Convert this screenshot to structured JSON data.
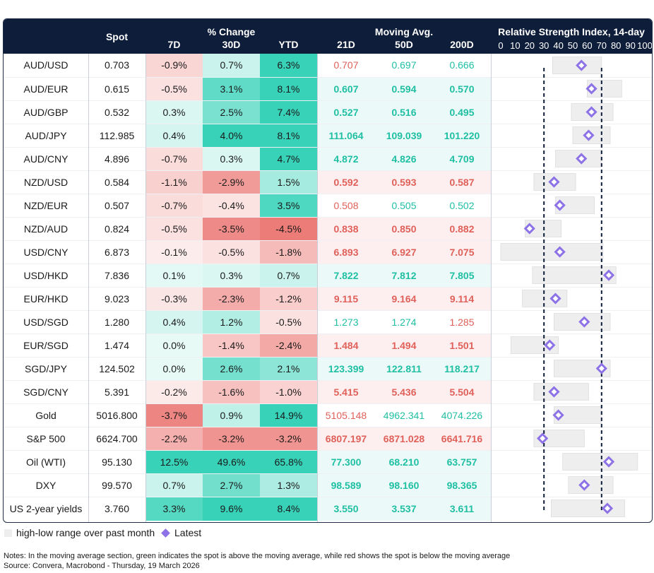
{
  "header": {
    "spot": "Spot",
    "pct_change": "% Change",
    "d7": "7D",
    "d30": "30D",
    "ytd": "YTD",
    "moving_avg": "Moving Avg.",
    "ma21": "21D",
    "ma50": "50D",
    "ma200": "200D",
    "rsi_title": "Relative Strength Index, 14-day",
    "rsi_ticks": [
      "0",
      "10",
      "20",
      "30",
      "40",
      "50",
      "60",
      "70",
      "80",
      "90",
      "100"
    ]
  },
  "colors": {
    "header_bg": "#0e1d3a",
    "green_text": "#1fbfa4",
    "red_text": "#e0605a",
    "marker": "#8c72e6",
    "range_bar": "#eeeeee"
  },
  "chart_data": {
    "type": "table",
    "rsi_xlim": [
      0,
      100
    ],
    "rsi_reference_lines": [
      30,
      70
    ],
    "rows": [
      {
        "name": "AUD/USD",
        "spot": "0.703",
        "d7": "-0.9%",
        "d30": "0.7%",
        "ytd": "6.3%",
        "ma21": "0.707",
        "ma50": "0.697",
        "ma200": "0.666",
        "rsi_low": 36,
        "rsi_high": 70,
        "rsi": 56
      },
      {
        "name": "AUD/EUR",
        "spot": "0.615",
        "d7": "-0.5%",
        "d30": "3.1%",
        "ytd": "8.1%",
        "ma21": "0.607",
        "ma50": "0.594",
        "ma200": "0.570",
        "rsi_low": 60,
        "rsi_high": 84,
        "rsi": 63
      },
      {
        "name": "AUD/GBP",
        "spot": "0.532",
        "d7": "0.3%",
        "d30": "2.5%",
        "ytd": "7.4%",
        "ma21": "0.527",
        "ma50": "0.516",
        "ma200": "0.495",
        "rsi_low": 49,
        "rsi_high": 78,
        "rsi": 63
      },
      {
        "name": "AUD/JPY",
        "spot": "112.985",
        "d7": "0.4%",
        "d30": "4.0%",
        "ytd": "8.1%",
        "ma21": "111.064",
        "ma50": "109.039",
        "ma200": "101.220",
        "rsi_low": 50,
        "rsi_high": 76,
        "rsi": 61
      },
      {
        "name": "AUD/CNY",
        "spot": "4.896",
        "d7": "-0.7%",
        "d30": "0.3%",
        "ytd": "4.7%",
        "ma21": "4.872",
        "ma50": "4.826",
        "ma200": "4.709",
        "rsi_low": 38,
        "rsi_high": 70,
        "rsi": 56
      },
      {
        "name": "NZD/USD",
        "spot": "0.584",
        "d7": "-1.1%",
        "d30": "-2.9%",
        "ytd": "1.5%",
        "ma21": "0.592",
        "ma50": "0.593",
        "ma200": "0.587",
        "rsi_low": 23,
        "rsi_high": 52,
        "rsi": 37
      },
      {
        "name": "NZD/EUR",
        "spot": "0.507",
        "d7": "-0.7%",
        "d30": "-0.4%",
        "ytd": "3.5%",
        "ma21": "0.508",
        "ma50": "0.505",
        "ma200": "0.502",
        "rsi_low": 38,
        "rsi_high": 65,
        "rsi": 41
      },
      {
        "name": "NZD/AUD",
        "spot": "0.824",
        "d7": "-0.5%",
        "d30": "-3.5%",
        "ytd": "-4.5%",
        "ma21": "0.838",
        "ma50": "0.850",
        "ma200": "0.882",
        "rsi_low": 17,
        "rsi_high": 42,
        "rsi": 20
      },
      {
        "name": "USD/CNY",
        "spot": "6.873",
        "d7": "-0.1%",
        "d30": "-0.5%",
        "ytd": "-1.8%",
        "ma21": "6.893",
        "ma50": "6.927",
        "ma200": "7.075",
        "rsi_low": 0,
        "rsi_high": 71,
        "rsi": 41
      },
      {
        "name": "USD/HKD",
        "spot": "7.836",
        "d7": "0.1%",
        "d30": "0.3%",
        "ytd": "0.7%",
        "ma21": "7.822",
        "ma50": "7.812",
        "ma200": "7.805",
        "rsi_low": 22,
        "rsi_high": 80,
        "rsi": 75
      },
      {
        "name": "EUR/HKD",
        "spot": "9.023",
        "d7": "-0.3%",
        "d30": "-2.3%",
        "ytd": "-1.2%",
        "ma21": "9.115",
        "ma50": "9.164",
        "ma200": "9.114",
        "rsi_low": 15,
        "rsi_high": 46,
        "rsi": 38
      },
      {
        "name": "USD/SGD",
        "spot": "1.280",
        "d7": "0.4%",
        "d30": "1.2%",
        "ytd": "-0.5%",
        "ma21": "1.273",
        "ma50": "1.274",
        "ma200": "1.285",
        "rsi_low": 37,
        "rsi_high": 76,
        "rsi": 58
      },
      {
        "name": "EUR/SGD",
        "spot": "1.474",
        "d7": "0.0%",
        "d30": "-1.4%",
        "ytd": "-2.4%",
        "ma21": "1.484",
        "ma50": "1.494",
        "ma200": "1.501",
        "rsi_low": 7,
        "rsi_high": 40,
        "rsi": 34
      },
      {
        "name": "SGD/JPY",
        "spot": "124.502",
        "d7": "0.0%",
        "d30": "2.6%",
        "ytd": "2.1%",
        "ma21": "123.399",
        "ma50": "122.811",
        "ma200": "118.217",
        "rsi_low": 37,
        "rsi_high": 76,
        "rsi": 70
      },
      {
        "name": "SGD/CNY",
        "spot": "5.391",
        "d7": "-0.2%",
        "d30": "-1.6%",
        "ytd": "-1.0%",
        "ma21": "5.415",
        "ma50": "5.436",
        "ma200": "5.504",
        "rsi_low": 23,
        "rsi_high": 61,
        "rsi": 37
      },
      {
        "name": "Gold",
        "spot": "5016.800",
        "d7": "-3.7%",
        "d30": "0.9%",
        "ytd": "14.9%",
        "ma21": "5105.148",
        "ma50": "4962.341",
        "ma200": "4074.226",
        "rsi_low": 37,
        "rsi_high": 70,
        "rsi": 40
      },
      {
        "name": "S&P 500",
        "spot": "6624.700",
        "d7": "-2.2%",
        "d30": "-3.2%",
        "ytd": "-3.2%",
        "ma21": "6807.197",
        "ma50": "6871.028",
        "ma200": "6641.716",
        "rsi_low": 23,
        "rsi_high": 58,
        "rsi": 29
      },
      {
        "name": "Oil (WTI)",
        "spot": "95.130",
        "d7": "12.5%",
        "d30": "49.6%",
        "ytd": "65.8%",
        "ma21": "77.300",
        "ma50": "68.210",
        "ma200": "63.757",
        "rsi_low": 43,
        "rsi_high": 95,
        "rsi": 75
      },
      {
        "name": "DXY",
        "spot": "99.570",
        "d7": "0.7%",
        "d30": "2.7%",
        "ytd": "1.3%",
        "ma21": "98.589",
        "ma50": "98.160",
        "ma200": "98.365",
        "rsi_low": 47,
        "rsi_high": 78,
        "rsi": 58
      },
      {
        "name": "US 2-year yields",
        "spot": "3.760",
        "d7": "3.3%",
        "d30": "9.6%",
        "ytd": "8.4%",
        "ma21": "3.550",
        "ma50": "3.537",
        "ma200": "3.611",
        "rsi_low": 35,
        "rsi_high": 86,
        "rsi": 74
      }
    ]
  },
  "legend": {
    "range_label": "high-low range over past month",
    "latest_label": "Latest"
  },
  "notes": {
    "line1": "Notes: In the moving average section, green indicates the spot is above the moving average, while red shows the spot is below the moving average",
    "line2": "Source: Convera, Macrobond - Thursday, 19 March 2026"
  }
}
